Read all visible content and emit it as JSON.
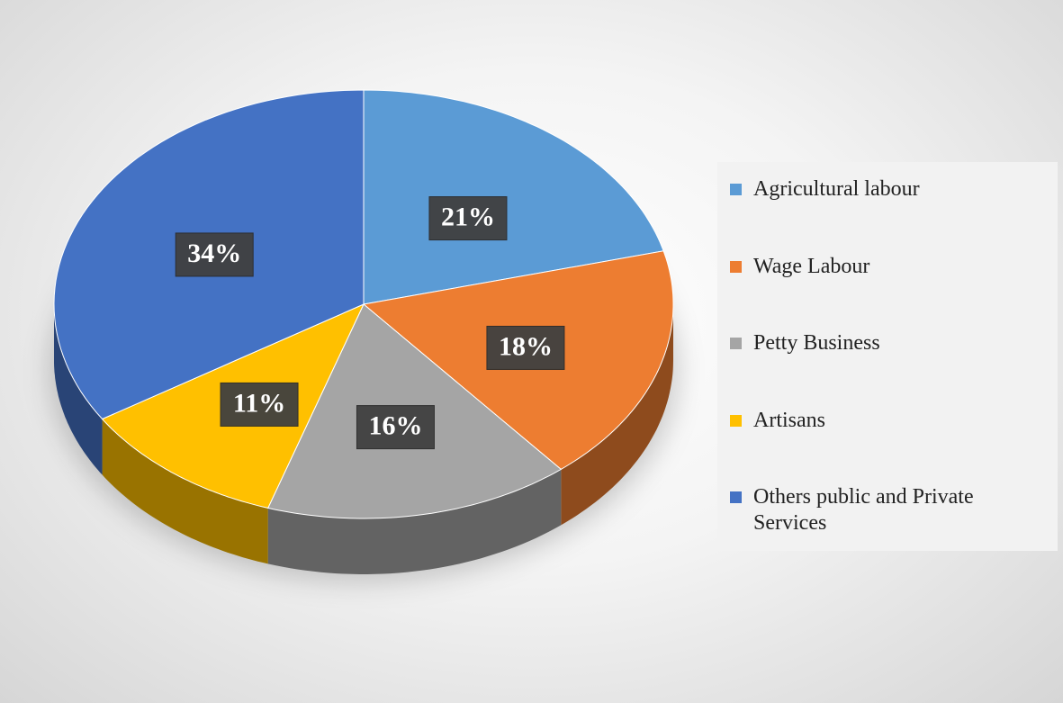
{
  "chart_data": {
    "type": "pie",
    "categories": [
      "Agricultural labour",
      "Wage Labour",
      "Petty Business",
      "Artisans",
      "Others public and Private Services"
    ],
    "values": [
      21,
      18,
      16,
      11,
      34
    ],
    "value_labels": [
      "21%",
      "18%",
      "16%",
      "11%",
      "34%"
    ],
    "colors": [
      "#5b9bd5",
      "#ed7d31",
      "#a5a5a5",
      "#ffc000",
      "#4472c4"
    ],
    "legend": "right"
  }
}
